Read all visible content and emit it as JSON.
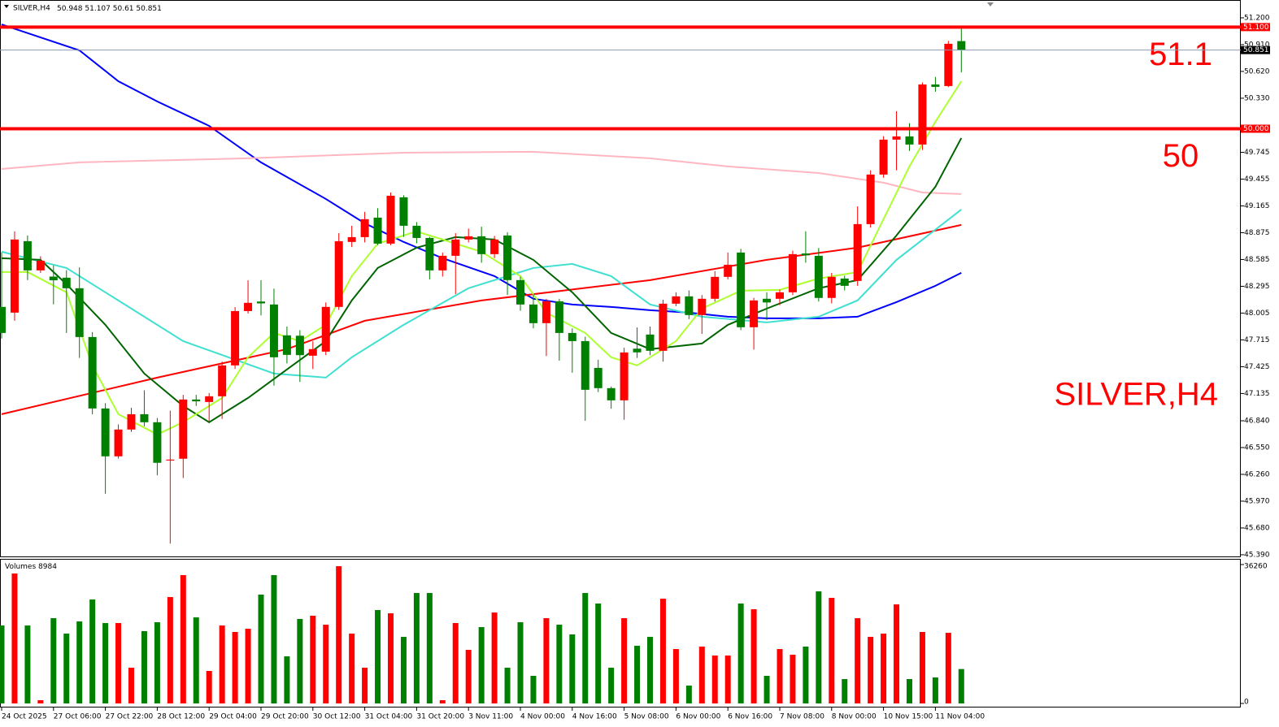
{
  "chart_data": {
    "type": "candlestick",
    "symbol": "SILVER,H4",
    "up_color": "#ff0000",
    "down_color": "#008000",
    "categories": [
      "24 Oct 2025",
      null,
      null,
      null,
      "27 Oct 06:00",
      null,
      null,
      null,
      "27 Oct 22:00",
      null,
      null,
      null,
      "28 Oct 12:00",
      null,
      null,
      null,
      "29 Oct 04:00",
      null,
      null,
      null,
      "29 Oct 20:00",
      null,
      null,
      null,
      "30 Oct 12:00",
      null,
      null,
      null,
      "31 Oct 04:00",
      null,
      null,
      null,
      "31 Oct 20:00",
      null,
      null,
      null,
      "3 Nov 11:00",
      null,
      null,
      null,
      "4 Nov 00:00",
      null,
      null,
      null,
      "4 Nov 16:00",
      null,
      null,
      null,
      "5 Nov 08:00",
      null,
      null,
      null,
      "6 Nov 00:00",
      null,
      null,
      null,
      "6 Nov 16:00",
      null,
      null,
      null,
      "7 Nov 08:00",
      null,
      null,
      null,
      "8 Nov 00:00",
      null,
      null,
      null,
      "10 Nov 15:00",
      null,
      null,
      null,
      "11 Nov 04:00",
      null,
      null
    ],
    "open": [
      48.072,
      48.01,
      48.783,
      48.467,
      48.4,
      48.388,
      48.274,
      47.746,
      46.973,
      46.455,
      46.745,
      46.911,
      46.824,
      46.41,
      46.429,
      47.07,
      47.043,
      47.105,
      47.439,
      48.027,
      48.13,
      48.098,
      47.764,
      47.76,
      47.544,
      47.588,
      48.072,
      48.775,
      48.827,
      49.038,
      48.757,
      49.258,
      48.95,
      48.818,
      48.467,
      48.625,
      48.801,
      48.836,
      48.643,
      48.845,
      48.362,
      48.098,
      47.896,
      48.133,
      47.79,
      47.702,
      47.412,
      47.193,
      47.061,
      47.62,
      47.773,
      47.597,
      48.107,
      48.186,
      47.984,
      48.16,
      48.397,
      48.66,
      47.852,
      48.16,
      48.16,
      48.23,
      48.65,
      48.625,
      48.169,
      48.379,
      48.353,
      48.968,
      49.504,
      49.882,
      49.917,
      49.829,
      50.479,
      50.462,
      50.948
    ],
    "high": [
      48.66,
      48.889,
      48.845,
      48.62,
      48.52,
      48.47,
      48.5,
      47.8,
      47.03,
      46.8,
      46.98,
      47.17,
      46.87,
      46.95,
      47.12,
      47.12,
      47.14,
      47.48,
      48.07,
      48.36,
      48.36,
      48.27,
      47.86,
      47.82,
      47.7,
      48.12,
      48.87,
      48.95,
      49.1,
      49.14,
      49.31,
      49.28,
      48.99,
      48.83,
      48.66,
      48.87,
      48.92,
      48.94,
      48.84,
      48.88,
      48.4,
      48.21,
      48.16,
      48.16,
      47.84,
      47.75,
      47.5,
      47.21,
      47.63,
      47.85,
      47.86,
      48.15,
      48.23,
      48.25,
      48.2,
      48.46,
      48.66,
      48.7,
      48.17,
      48.23,
      48.26,
      48.68,
      48.89,
      48.71,
      48.44,
      48.41,
      49.16,
      49.55,
      49.92,
      50.19,
      50.06,
      50.5,
      50.56,
      50.95,
      51.107
    ],
    "low": [
      47.73,
      47.922,
      48.362,
      48.44,
      48.1,
      47.79,
      47.52,
      46.91,
      46.05,
      46.43,
      46.72,
      46.78,
      46.25,
      45.51,
      46.22,
      47.0,
      46.83,
      46.86,
      47.4,
      48.0,
      47.98,
      47.22,
      47.46,
      47.26,
      47.4,
      47.55,
      48.04,
      48.72,
      48.77,
      48.74,
      48.74,
      48.83,
      48.76,
      48.37,
      48.4,
      48.21,
      48.77,
      48.55,
      48.6,
      48.2,
      48.03,
      47.84,
      47.54,
      47.49,
      47.36,
      46.84,
      47.15,
      46.97,
      46.85,
      47.52,
      47.55,
      47.48,
      48.08,
      47.94,
      47.78,
      48.13,
      48.37,
      47.82,
      47.61,
      47.93,
      48.09,
      48.2,
      48.55,
      48.13,
      48.11,
      48.25,
      48.3,
      48.93,
      49.47,
      49.55,
      49.76,
      49.77,
      50.4,
      50.45,
      50.61
    ],
    "close": [
      47.79,
      48.801,
      48.467,
      48.572,
      48.36,
      48.274,
      47.746,
      46.973,
      46.455,
      46.745,
      46.911,
      46.824,
      46.385,
      46.42,
      47.07,
      47.05,
      47.105,
      47.439,
      48.027,
      48.116,
      48.11,
      47.527,
      47.553,
      47.55,
      47.615,
      48.072,
      48.783,
      48.827,
      49.021,
      48.757,
      49.275,
      48.95,
      48.818,
      48.467,
      48.625,
      48.801,
      48.836,
      48.643,
      48.801,
      48.362,
      48.098,
      47.896,
      48.133,
      47.79,
      47.702,
      47.175,
      47.193,
      47.061,
      47.579,
      47.58,
      47.597,
      48.107,
      48.186,
      47.984,
      48.16,
      48.397,
      48.528,
      47.852,
      48.142,
      48.12,
      48.23,
      48.643,
      48.63,
      48.169,
      48.397,
      48.3,
      48.968,
      49.504,
      49.882,
      49.917,
      49.829,
      50.479,
      50.453,
      50.919,
      50.851
    ],
    "ylim": [
      45.372,
      51.349
    ],
    "yticks": [
      {
        "value": 51.2,
        "label": "51.200"
      },
      {
        "value": 50.91,
        "label": "50.910"
      },
      {
        "value": 50.62,
        "label": "50.620"
      },
      {
        "value": 50.33,
        "label": "50.330"
      },
      {
        "value": 49.745,
        "label": "49.745"
      },
      {
        "value": 49.455,
        "label": "49.455"
      },
      {
        "value": 49.165,
        "label": "49.165"
      },
      {
        "value": 48.875,
        "label": "48.875"
      },
      {
        "value": 48.585,
        "label": "48.585"
      },
      {
        "value": 48.295,
        "label": "48.295"
      },
      {
        "value": 48.005,
        "label": "48.005"
      },
      {
        "value": 47.715,
        "label": "47.715"
      },
      {
        "value": 47.425,
        "label": "47.425"
      },
      {
        "value": 47.135,
        "label": "47.135"
      },
      {
        "value": 46.84,
        "label": "46.840"
      },
      {
        "value": 46.55,
        "label": "46.550"
      },
      {
        "value": 46.26,
        "label": "46.260"
      },
      {
        "value": 45.97,
        "label": "45.970"
      },
      {
        "value": 45.68,
        "label": "45.680"
      },
      {
        "value": 45.39,
        "label": "45.390"
      }
    ],
    "levels": [
      {
        "value": 51.1,
        "label": "51.1",
        "tag": "51.100",
        "color": "#ff0000"
      },
      {
        "value": 50.0,
        "label": "50",
        "tag": "50.000",
        "color": "#ff0000"
      }
    ],
    "moving_averages": [
      {
        "color": "#0000ff",
        "x": [
          0,
          6,
          9,
          12,
          16,
          20,
          25,
          28,
          31,
          34,
          38,
          41,
          44,
          47,
          50,
          53,
          56,
          59,
          63,
          66,
          69,
          72,
          74
        ],
        "values": [
          51.129,
          50.848,
          50.514,
          50.295,
          50.031,
          49.636,
          49.24,
          48.977,
          48.775,
          48.599,
          48.405,
          48.16,
          48.098,
          48.072,
          48.036,
          48.01,
          47.966,
          47.949,
          47.949,
          47.966,
          48.124,
          48.3,
          48.441
        ]
      },
      {
        "color": "#ffb6c1",
        "x": [
          0,
          6,
          19,
          31,
          41,
          50,
          56,
          63,
          68,
          71,
          74
        ],
        "values": [
          49.565,
          49.636,
          49.68,
          49.741,
          49.75,
          49.68,
          49.592,
          49.521,
          49.416,
          49.31,
          49.293
        ]
      },
      {
        "color": "#ff0000",
        "x": [
          0,
          12,
          22,
          28,
          37,
          50,
          59,
          66,
          74
        ],
        "values": [
          46.911,
          47.307,
          47.615,
          47.922,
          48.142,
          48.362,
          48.581,
          48.713,
          48.959
        ]
      },
      {
        "color": "#40e0d0",
        "x": [
          0,
          5,
          9,
          14,
          21,
          25,
          27,
          31,
          36,
          41,
          44,
          47,
          50,
          54,
          59,
          63,
          66,
          69,
          74
        ],
        "values": [
          48.669,
          48.493,
          48.142,
          47.702,
          47.351,
          47.307,
          47.527,
          47.878,
          48.274,
          48.493,
          48.537,
          48.405,
          48.098,
          47.966,
          47.905,
          47.966,
          48.142,
          48.581,
          49.126
        ]
      },
      {
        "color": "#006400",
        "x": [
          0,
          3,
          5,
          8,
          11,
          14,
          16,
          19,
          22,
          25,
          27,
          29,
          32,
          35,
          38,
          41,
          44,
          47,
          50,
          54,
          56,
          59,
          63,
          66,
          69,
          72,
          74
        ],
        "values": [
          48.599,
          48.581,
          48.318,
          47.878,
          47.351,
          47.0,
          46.824,
          47.087,
          47.395,
          47.702,
          48.142,
          48.493,
          48.713,
          48.827,
          48.801,
          48.581,
          48.23,
          47.79,
          47.615,
          47.676,
          47.878,
          48.054,
          48.274,
          48.362,
          48.845,
          49.372,
          49.899
        ]
      },
      {
        "color": "#adff2f",
        "x": [
          0,
          2,
          5,
          7,
          9,
          12,
          14,
          17,
          19,
          21,
          23,
          25,
          27,
          29,
          32,
          34,
          37,
          40,
          42,
          45,
          47,
          49,
          52,
          54,
          57,
          60,
          63,
          66,
          68,
          70,
          72,
          74
        ],
        "values": [
          48.449,
          48.449,
          48.23,
          47.439,
          46.911,
          46.692,
          46.824,
          47.087,
          47.527,
          47.79,
          47.702,
          47.878,
          48.405,
          48.757,
          48.889,
          48.801,
          48.669,
          48.405,
          48.01,
          47.79,
          47.527,
          47.439,
          47.702,
          48.054,
          48.247,
          48.256,
          48.379,
          48.449,
          49.021,
          49.592,
          50.075,
          50.514
        ]
      }
    ],
    "volume_title": "Volumes",
    "volumes": [
      20350,
      33920,
      20350,
      850,
      22260,
      18230,
      21410,
      27140,
      20990,
      20990,
      9330,
      18870,
      21200,
      27770,
      33500,
      22470,
      8480,
      20350,
      18660,
      19500,
      28410,
      33500,
      12300,
      22050,
      22900,
      20560,
      35830,
      18230,
      9330,
      24380,
      23530,
      17380,
      28830,
      28830,
      850,
      20990,
      13990,
      19930,
      23740,
      9330,
      21200,
      7210,
      22260,
      20560,
      18020,
      28830,
      26080,
      9330,
      22260,
      15050,
      17380,
      27350,
      14200,
      4660,
      14840,
      12510,
      12510,
      26080,
      24590,
      7210,
      14200,
      12720,
      14840,
      29260,
      27560,
      6360,
      22260,
      17380,
      18230,
      25860,
      6360,
      18660,
      6780,
      18440,
      8984
    ],
    "vlim": [
      0,
      36260
    ],
    "vticks": [
      36260,
      0
    ]
  }
}
